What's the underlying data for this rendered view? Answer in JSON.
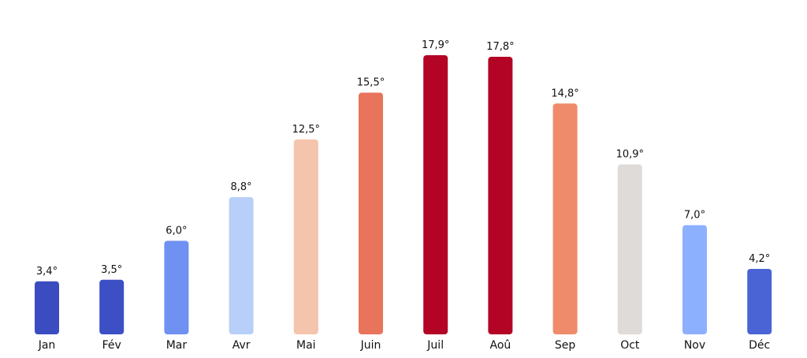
{
  "chart_data": {
    "type": "bar",
    "title": "",
    "xlabel": "",
    "ylabel": "",
    "categories": [
      "Jan",
      "Fév",
      "Mar",
      "Avr",
      "Mai",
      "Juin",
      "Juil",
      "Aoû",
      "Sep",
      "Oct",
      "Nov",
      "Déc"
    ],
    "values": [
      3.4,
      3.5,
      6.0,
      8.8,
      12.5,
      15.5,
      17.9,
      17.8,
      14.8,
      10.9,
      7.0,
      4.2
    ],
    "value_labels": [
      "3,4°",
      "3,5°",
      "6,0°",
      "8,8°",
      "12,5°",
      "15,5°",
      "17,9°",
      "17,8°",
      "14,8°",
      "10,9°",
      "7,0°",
      "4,2°"
    ],
    "colors": [
      "#3b4cc0",
      "#3d4fc4",
      "#6f91f2",
      "#b7cff9",
      "#f5c4ac",
      "#e7745b",
      "#b40426",
      "#b40426",
      "#ef8b6b",
      "#dfdbd9",
      "#8db0fe",
      "#4b64d5"
    ],
    "ylim": [
      0,
      17.9
    ],
    "grid": false,
    "legend": "none",
    "axes_visible": false
  }
}
